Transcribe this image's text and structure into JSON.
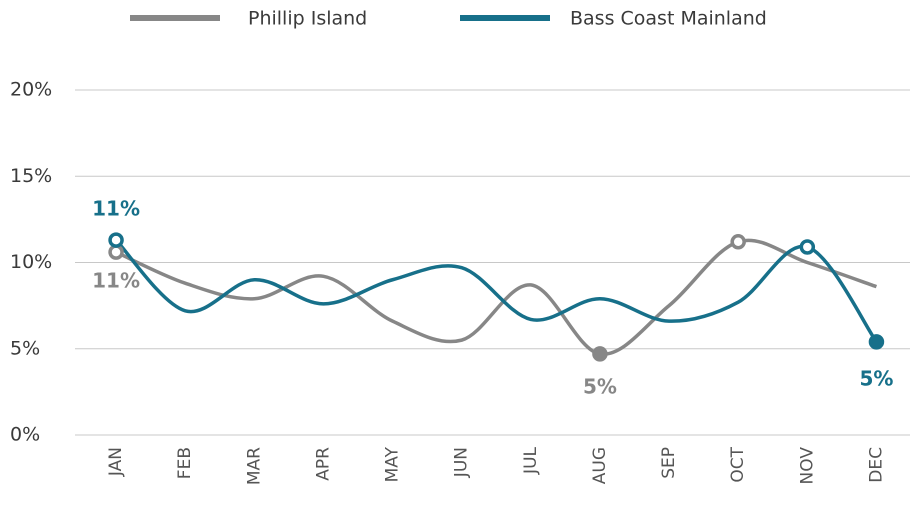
{
  "chart_data": {
    "type": "line",
    "categories": [
      "JAN",
      "FEB",
      "MAR",
      "APR",
      "MAY",
      "JUN",
      "JUL",
      "AUG",
      "SEP",
      "OCT",
      "NOV",
      "DEC"
    ],
    "series": [
      {
        "name": "Phillip Island",
        "color": "#878787",
        "values": [
          10.6,
          8.8,
          7.9,
          9.2,
          6.6,
          5.5,
          8.7,
          4.7,
          7.5,
          11.2,
          10.0,
          8.6
        ],
        "value_labels": [
          "11%",
          null,
          null,
          null,
          null,
          null,
          null,
          "5%",
          null,
          null,
          null,
          null
        ],
        "marker_styles": [
          "hollow",
          null,
          null,
          null,
          null,
          null,
          null,
          "filled",
          null,
          "hollow",
          null,
          null
        ]
      },
      {
        "name": "Bass Coast Mainland",
        "color": "#17708a",
        "values": [
          11.3,
          7.2,
          9.0,
          7.6,
          9.0,
          9.7,
          6.7,
          7.9,
          6.6,
          7.7,
          10.9,
          5.4
        ],
        "value_labels": [
          "11%",
          null,
          null,
          null,
          null,
          null,
          null,
          null,
          null,
          null,
          null,
          "5%"
        ],
        "marker_styles": [
          "hollow",
          null,
          null,
          null,
          null,
          null,
          null,
          null,
          null,
          null,
          "hollow",
          "filled"
        ]
      }
    ],
    "ylim": [
      0,
      20
    ],
    "yticks": [
      {
        "value": 0,
        "label": "0%"
      },
      {
        "value": 5,
        "label": "5%"
      },
      {
        "value": 10,
        "label": "10%"
      },
      {
        "value": 15,
        "label": "15%"
      },
      {
        "value": 20,
        "label": "20%"
      }
    ],
    "grid": true,
    "legend": "top"
  }
}
